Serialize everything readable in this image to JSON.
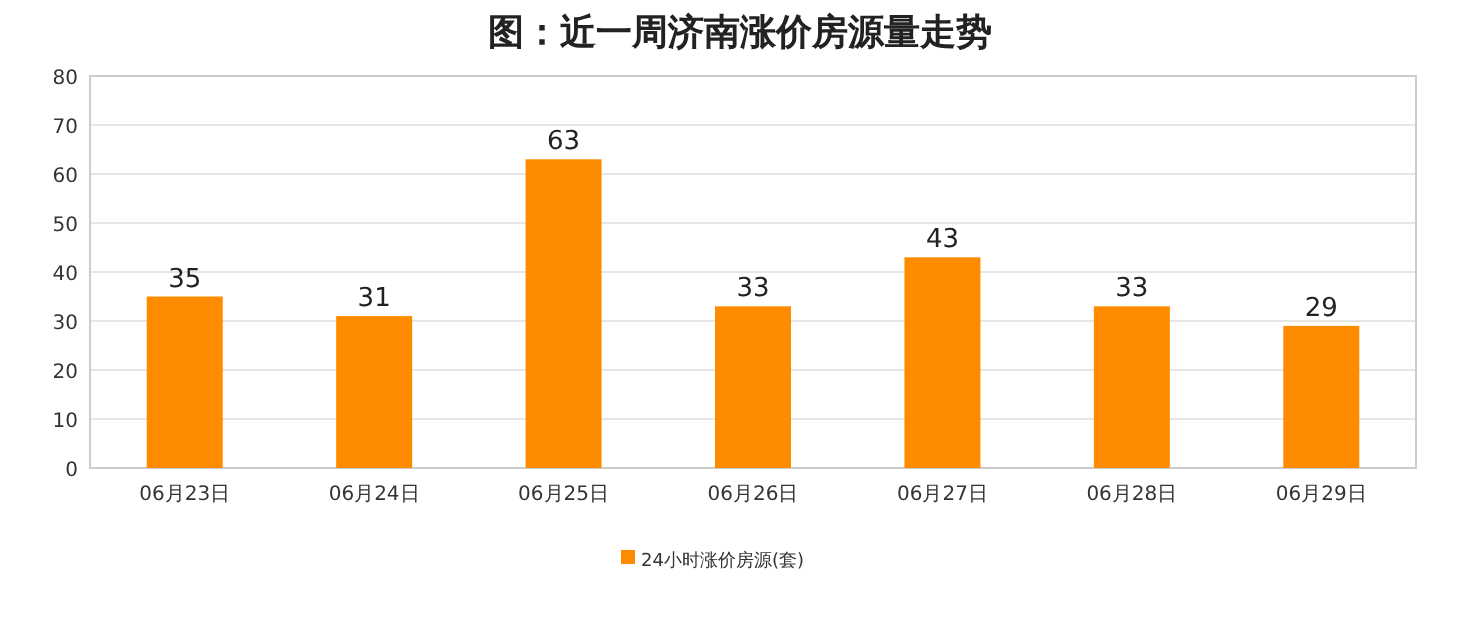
{
  "chart_data": {
    "type": "bar",
    "title": "图：近一周济南涨价房源量走势",
    "categories": [
      "06月23日",
      "06月24日",
      "06月25日",
      "06月26日",
      "06月27日",
      "06月28日",
      "06月29日"
    ],
    "series": [
      {
        "name": "24小时涨价房源(套)",
        "color": "#ff8c00",
        "values": [
          35,
          31,
          63,
          33,
          43,
          33,
          29
        ]
      }
    ],
    "ylim": [
      0,
      80
    ],
    "yticks": [
      0,
      10,
      20,
      30,
      40,
      50,
      60,
      70,
      80
    ],
    "grid": "y",
    "data_labels": true,
    "legend": "bottom"
  }
}
